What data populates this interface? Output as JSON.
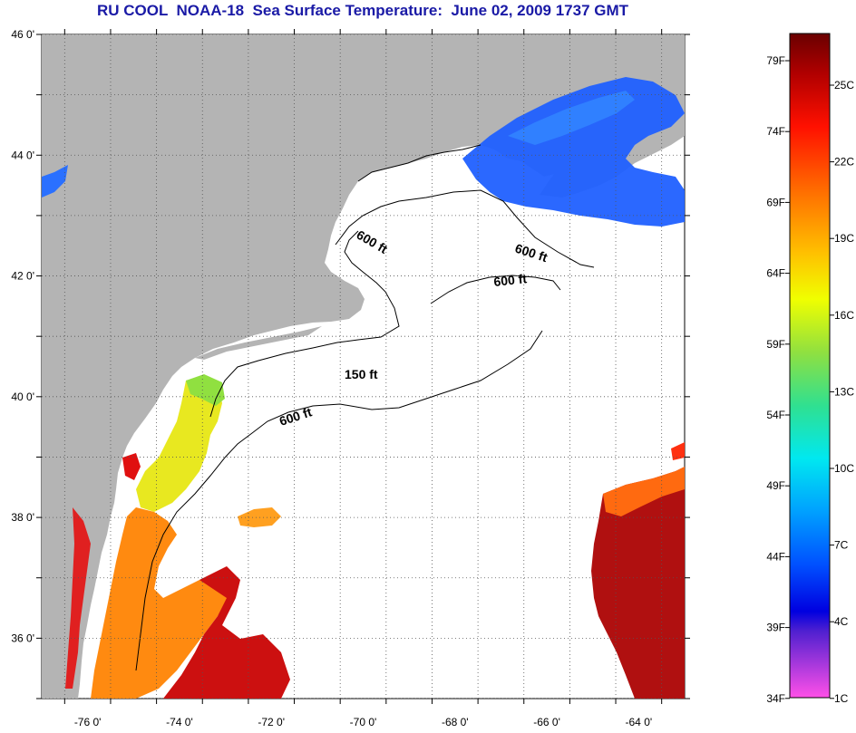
{
  "title": "RU COOL  NOAA-18  Sea Surface Temperature:  June 02, 2009 1737 GMT",
  "map": {
    "lat_ticks": [
      "46 0'",
      "44 0'",
      "42 0'",
      "40 0'",
      "38 0'",
      "36 0'"
    ],
    "lon_ticks": [
      "-76 0'",
      "-74 0'",
      "-72 0'",
      "-70 0'",
      "-68 0'",
      "-66 0'",
      "-64 0'"
    ],
    "lat_range": [
      35,
      46
    ],
    "lon_range": [
      -77,
      -63
    ],
    "depth_labels": [
      "600 ft",
      "600 ft",
      "600 ft",
      "150 ft",
      "600 ft"
    ],
    "colors": {
      "land": "#b4b4b4",
      "ocean_nodata": "#ffffff",
      "grid": "#555555"
    }
  },
  "colorbar": {
    "fahrenheit_labels": [
      "79F",
      "74F",
      "69F",
      "64F",
      "59F",
      "54F",
      "49F",
      "44F",
      "39F",
      "34F"
    ],
    "celsius_labels": [
      "25C",
      "22C",
      "19C",
      "16C",
      "13C",
      "10C",
      "7C",
      "4C",
      "1C"
    ],
    "colors_top_to_bottom": [
      "#7a0000",
      "#c80000",
      "#ff2000",
      "#ff7a00",
      "#ffc800",
      "#f0ff00",
      "#80e040",
      "#20e0a0",
      "#00e8ff",
      "#00a0ff",
      "#0050ff",
      "#0000e0",
      "#9020e0",
      "#ff40e0"
    ]
  }
}
